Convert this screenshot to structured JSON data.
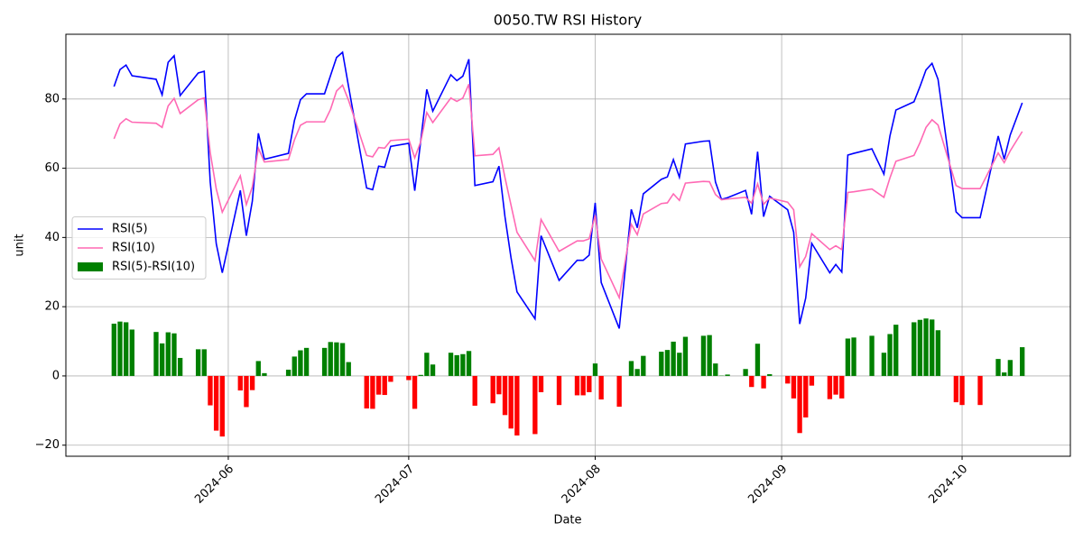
{
  "chart_data": {
    "type": "line_bar",
    "title": "0050.TW RSI History",
    "xlabel": "Date",
    "ylabel": "unit",
    "x": [
      "2024-05-13",
      "2024-05-14",
      "2024-05-15",
      "2024-05-16",
      "2024-05-20",
      "2024-05-21",
      "2024-05-22",
      "2024-05-23",
      "2024-05-24",
      "2024-05-27",
      "2024-05-28",
      "2024-05-29",
      "2024-05-30",
      "2024-05-31",
      "2024-06-03",
      "2024-06-04",
      "2024-06-05",
      "2024-06-06",
      "2024-06-07",
      "2024-06-11",
      "2024-06-12",
      "2024-06-13",
      "2024-06-14",
      "2024-06-17",
      "2024-06-18",
      "2024-06-19",
      "2024-06-20",
      "2024-06-21",
      "2024-06-24",
      "2024-06-25",
      "2024-06-26",
      "2024-06-27",
      "2024-06-28",
      "2024-07-01",
      "2024-07-02",
      "2024-07-03",
      "2024-07-04",
      "2024-07-05",
      "2024-07-08",
      "2024-07-09",
      "2024-07-10",
      "2024-07-11",
      "2024-07-12",
      "2024-07-15",
      "2024-07-16",
      "2024-07-17",
      "2024-07-18",
      "2024-07-19",
      "2024-07-22",
      "2024-07-23",
      "2024-07-26",
      "2024-07-29",
      "2024-07-30",
      "2024-07-31",
      "2024-08-01",
      "2024-08-02",
      "2024-08-05",
      "2024-08-07",
      "2024-08-08",
      "2024-08-09",
      "2024-08-12",
      "2024-08-13",
      "2024-08-14",
      "2024-08-15",
      "2024-08-16",
      "2024-08-19",
      "2024-08-20",
      "2024-08-21",
      "2024-08-22",
      "2024-08-23",
      "2024-08-26",
      "2024-08-27",
      "2024-08-28",
      "2024-08-29",
      "2024-08-30",
      "2024-09-02",
      "2024-09-03",
      "2024-09-04",
      "2024-09-05",
      "2024-09-06",
      "2024-09-09",
      "2024-09-10",
      "2024-09-11",
      "2024-09-12",
      "2024-09-13",
      "2024-09-16",
      "2024-09-18",
      "2024-09-19",
      "2024-09-20",
      "2024-09-23",
      "2024-09-24",
      "2024-09-25",
      "2024-09-26",
      "2024-09-27",
      "2024-09-30",
      "2024-10-01",
      "2024-10-04",
      "2024-10-07",
      "2024-10-08",
      "2024-10-09",
      "2024-10-11"
    ],
    "series": [
      {
        "name": "RSI(5)",
        "kind": "line",
        "color": "#0000ff",
        "values": [
          83.6,
          88.5,
          89.8,
          86.7,
          85.7,
          81.2,
          90.6,
          92.5,
          81.0,
          87.5,
          88.0,
          56.0,
          38.2,
          29.8,
          53.6,
          40.5,
          50.5,
          70.1,
          62.6,
          64.3,
          73.8,
          79.8,
          81.5,
          81.5,
          86.8,
          92.0,
          93.5,
          83.6,
          54.3,
          53.8,
          60.6,
          60.3,
          66.3,
          67.2,
          53.5,
          68.0,
          82.8,
          76.5,
          87.0,
          85.3,
          86.6,
          91.5,
          55.0,
          56.1,
          60.6,
          46.0,
          34.2,
          24.3,
          16.5,
          40.5,
          27.6,
          33.4,
          33.4,
          34.9,
          50.0,
          27.0,
          13.7,
          48.1,
          42.8,
          52.6,
          56.8,
          57.5,
          62.5,
          57.4,
          67.0,
          67.8,
          67.9,
          56.0,
          51.0,
          51.5,
          53.6,
          46.7,
          64.8,
          46.0,
          51.9,
          48.0,
          41.5,
          15.0,
          22.5,
          38.3,
          29.8,
          32.2,
          30.0,
          63.8,
          64.3,
          65.6,
          58.3,
          69.3,
          76.8,
          79.2,
          83.6,
          88.4,
          90.3,
          85.7,
          47.4,
          45.7,
          45.7,
          69.3,
          62.6,
          69.6,
          78.9
        ]
      },
      {
        "name": "RSI(10)",
        "kind": "line",
        "color": "#ff69b4",
        "values": [
          68.5,
          72.8,
          74.3,
          73.3,
          73.0,
          71.8,
          78.0,
          80.2,
          75.8,
          79.8,
          80.3,
          64.5,
          54.0,
          47.3,
          57.8,
          49.5,
          54.6,
          65.8,
          61.8,
          62.5,
          68.2,
          72.4,
          73.4,
          73.4,
          77.0,
          82.3,
          84.0,
          79.6,
          63.7,
          63.3,
          66.0,
          65.8,
          68.0,
          68.4,
          63.0,
          67.7,
          76.1,
          73.2,
          80.3,
          79.3,
          80.3,
          84.3,
          63.6,
          64.0,
          65.9,
          57.3,
          49.4,
          41.5,
          33.3,
          45.2,
          36.0,
          39.0,
          39.0,
          39.6,
          46.4,
          33.8,
          22.6,
          43.8,
          40.8,
          46.8,
          49.8,
          50.0,
          52.6,
          50.7,
          55.7,
          56.2,
          56.1,
          52.4,
          50.9,
          51.1,
          51.6,
          49.9,
          55.5,
          49.6,
          51.4,
          50.2,
          48.0,
          31.5,
          34.5,
          41.1,
          36.5,
          37.6,
          36.5,
          53.0,
          53.2,
          54.0,
          51.6,
          57.2,
          62.0,
          63.7,
          67.4,
          71.8,
          74.0,
          72.5,
          55.0,
          54.1,
          54.1,
          64.4,
          61.6,
          65.0,
          70.6
        ]
      },
      {
        "name": "RSI(5)-RSI(10)",
        "kind": "bar",
        "color": "#008000",
        "negative_color": "#ff0000",
        "values": [
          15.1,
          15.7,
          15.5,
          13.4,
          12.7,
          9.4,
          12.6,
          12.3,
          5.2,
          7.7,
          7.7,
          -8.5,
          -15.8,
          -17.5,
          -4.2,
          -9.0,
          -4.1,
          4.3,
          0.8,
          1.8,
          5.6,
          7.4,
          8.1,
          8.1,
          9.8,
          9.7,
          9.5,
          4.0,
          -9.4,
          -9.5,
          -5.4,
          -5.5,
          -1.7,
          -1.2,
          -9.5,
          0.3,
          6.7,
          3.3,
          6.7,
          6.0,
          6.3,
          7.2,
          -8.6,
          -7.9,
          -5.3,
          -11.3,
          -15.2,
          -17.2,
          -16.8,
          -4.7,
          -8.4,
          -5.6,
          -5.6,
          -4.7,
          3.6,
          -6.8,
          -8.9,
          4.3,
          2.0,
          5.8,
          7.0,
          7.5,
          9.9,
          6.7,
          11.3,
          11.6,
          11.8,
          3.6,
          0.1,
          0.4,
          2.0,
          -3.2,
          9.3,
          -3.6,
          0.5,
          -2.2,
          -6.5,
          -16.5,
          -12.0,
          -2.8,
          -6.7,
          -5.4,
          -6.5,
          10.8,
          11.1,
          11.6,
          6.7,
          12.1,
          14.8,
          15.5,
          16.2,
          16.6,
          16.3,
          13.2,
          -7.6,
          -8.4,
          -8.4,
          4.9,
          1.0,
          4.6,
          8.3
        ]
      }
    ],
    "xlim": [
      "2024-05-05",
      "2024-10-19"
    ],
    "xticks": [
      {
        "value": "2024-06-01",
        "label": "2024-06"
      },
      {
        "value": "2024-07-01",
        "label": "2024-07"
      },
      {
        "value": "2024-08-01",
        "label": "2024-08"
      },
      {
        "value": "2024-09-01",
        "label": "2024-09"
      },
      {
        "value": "2024-10-01",
        "label": "2024-10"
      }
    ],
    "ylim": [
      -23.2,
      98.7
    ],
    "yticks": [
      {
        "value": -20,
        "label": "−20"
      },
      0,
      20,
      40,
      60,
      80
    ],
    "grid": true,
    "legend": "center left"
  }
}
